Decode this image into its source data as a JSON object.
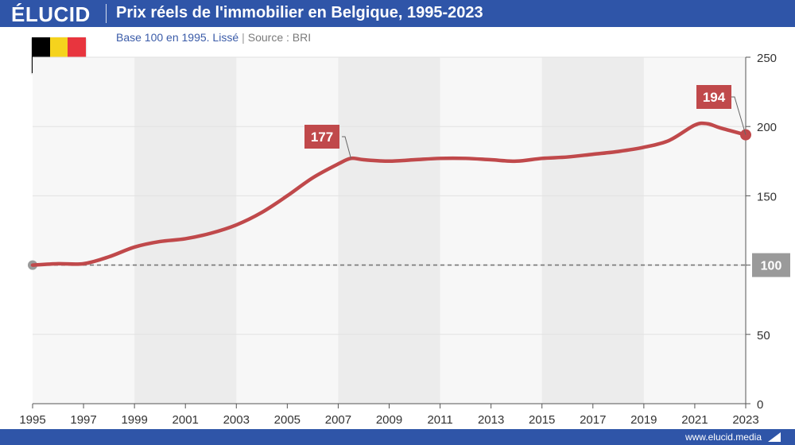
{
  "header": {
    "logo": "ÉLUCID",
    "title": "Prix réels de l'immobilier en Belgique, 1995-2023",
    "subtitle": "Base 100 en 1995. Lissé",
    "source": "Source : BRI"
  },
  "flag": {
    "colors": [
      "#000000",
      "#f5d31d",
      "#e8353e"
    ]
  },
  "footer": {
    "url": "www.elucid.media"
  },
  "colors": {
    "brand": "#2f55a8",
    "line": "#c0494b",
    "baseline": "#777777",
    "band": "#ececec",
    "plot_bg": "#f7f7f7"
  },
  "chart_data": {
    "type": "line",
    "title": "Prix réels de l'immobilier en Belgique, 1995-2023",
    "subtitle": "Base 100 en 1995. Lissé",
    "xlim": [
      1995,
      2023
    ],
    "ylim": [
      0,
      250
    ],
    "y_ticks": [
      0,
      50,
      100,
      150,
      200,
      250
    ],
    "x_ticks": [
      1995,
      1997,
      1999,
      2001,
      2003,
      2005,
      2007,
      2009,
      2011,
      2013,
      2015,
      2017,
      2019,
      2021,
      2023
    ],
    "shaded_bands": [
      [
        1999,
        2003
      ],
      [
        2007,
        2011
      ],
      [
        2015,
        2019
      ]
    ],
    "baseline": {
      "value": 100,
      "label": "100"
    },
    "series": [
      {
        "name": "Prix réels (base 100 en 1995)",
        "x": [
          1995,
          1996,
          1997,
          1998,
          1999,
          2000,
          2001,
          2002,
          2003,
          2004,
          2005,
          2006,
          2007,
          2007.5,
          2008,
          2009,
          2010,
          2011,
          2012,
          2013,
          2014,
          2015,
          2016,
          2017,
          2018,
          2019,
          2020,
          2021,
          2021.5,
          2022,
          2023
        ],
        "values": [
          100,
          101,
          101,
          106,
          113,
          117,
          119,
          123,
          129,
          138,
          150,
          163,
          173,
          177,
          176,
          175,
          176,
          177,
          177,
          176,
          175,
          177,
          178,
          180,
          182,
          185,
          190,
          201,
          202,
          199,
          194
        ]
      }
    ],
    "annotations": [
      {
        "x": 2007.5,
        "y": 177,
        "label": "177"
      },
      {
        "x": 2023,
        "y": 194,
        "label": "194"
      }
    ]
  }
}
